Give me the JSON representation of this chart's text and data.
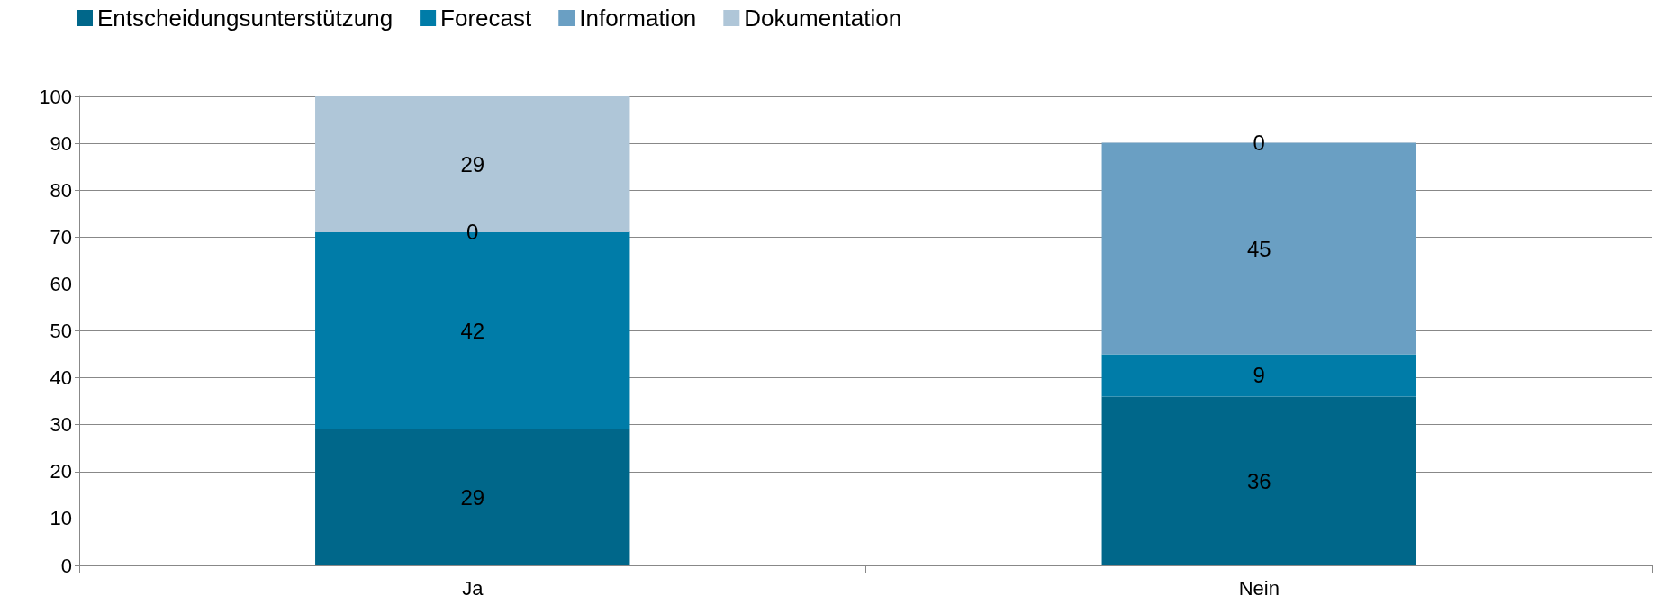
{
  "chart_data": {
    "type": "bar",
    "stacked": true,
    "categories": [
      "Ja",
      "Nein"
    ],
    "series": [
      {
        "name": "Entscheidungsunterstützung",
        "color": "#00678a",
        "values": [
          29,
          36
        ]
      },
      {
        "name": "Forecast",
        "color": "#007ca8",
        "values": [
          42,
          9
        ]
      },
      {
        "name": "Information",
        "color": "#6a9fc3",
        "values": [
          0,
          45
        ]
      },
      {
        "name": "Dokumentation",
        "color": "#afc6d8",
        "values": [
          29,
          0
        ]
      }
    ],
    "ylim": [
      0,
      100
    ],
    "yticks": [
      0,
      10,
      20,
      30,
      40,
      50,
      60,
      70,
      80,
      90,
      100
    ],
    "grid": "y",
    "legend": "top left",
    "data_labels": true
  }
}
